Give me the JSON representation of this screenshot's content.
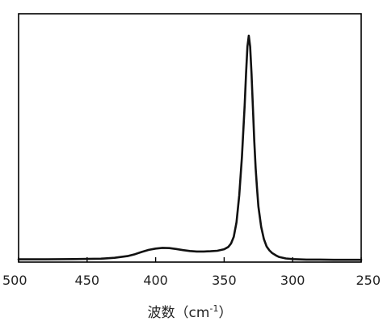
{
  "chart_data": {
    "type": "line",
    "title": "",
    "xlabel": "波数（cm",
    "xlabel_superscript": "-1",
    "xlabel_close": "）",
    "ylabel": "",
    "xlim": [
      500,
      250
    ],
    "x_reversed": true,
    "ylim": [
      0,
      1
    ],
    "y_ticks_shown": false,
    "grid": false,
    "legend": "none",
    "x_ticks": [
      500,
      450,
      400,
      350,
      300,
      250
    ],
    "x_tick_labels": [
      "500",
      "450",
      "400",
      "350",
      "300",
      "250"
    ],
    "line_color": "#111111",
    "series": [
      {
        "x": [
          500,
          480,
          460,
          440,
          430,
          420,
          415,
          410,
          405,
          400,
          395,
          390,
          385,
          380,
          375,
          370,
          365,
          360,
          355,
          350,
          347,
          345,
          343,
          341,
          339,
          337,
          335,
          334,
          333,
          332,
          331,
          330,
          329,
          328,
          327,
          326,
          325,
          323,
          321,
          319,
          317,
          315,
          312,
          310,
          305,
          300,
          290,
          280,
          270,
          260,
          250
        ],
        "y": [
          0.005,
          0.005,
          0.006,
          0.008,
          0.012,
          0.02,
          0.028,
          0.038,
          0.047,
          0.053,
          0.056,
          0.055,
          0.051,
          0.046,
          0.042,
          0.04,
          0.04,
          0.041,
          0.043,
          0.05,
          0.06,
          0.075,
          0.105,
          0.17,
          0.29,
          0.46,
          0.69,
          0.83,
          0.95,
          1.0,
          0.95,
          0.83,
          0.68,
          0.53,
          0.41,
          0.32,
          0.24,
          0.15,
          0.095,
          0.062,
          0.045,
          0.033,
          0.022,
          0.016,
          0.009,
          0.006,
          0.004,
          0.004,
          0.003,
          0.003,
          0.003
        ]
      }
    ]
  }
}
